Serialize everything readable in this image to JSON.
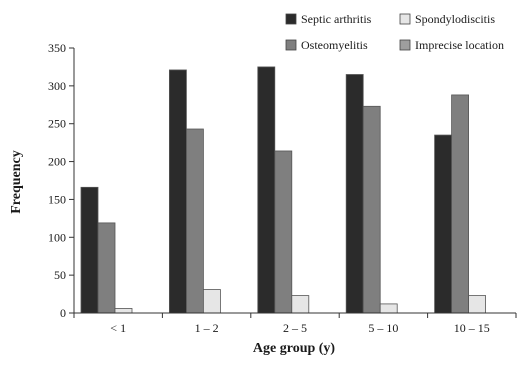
{
  "chart_data": {
    "type": "bar",
    "title": "",
    "xlabel": "Age group (y)",
    "ylabel": "Frequency",
    "ylim": [
      0,
      350
    ],
    "yticks": [
      0,
      50,
      100,
      150,
      200,
      250,
      300,
      350
    ],
    "categories": [
      "< 1",
      "1 – 2",
      "2 – 5",
      "5 – 10",
      "10 – 15"
    ],
    "series": [
      {
        "name": "Septic arthritis",
        "color": "#2b2b2b",
        "values": [
          166,
          321,
          325,
          315,
          235
        ]
      },
      {
        "name": "Osteomyelitis",
        "color": "#7f7f7f",
        "values": [
          119,
          243,
          214,
          273,
          288
        ]
      },
      {
        "name": "Spondylodiscitis",
        "color": "#e6e6e6",
        "values": [
          6,
          31,
          23,
          12,
          23
        ]
      },
      {
        "name": "Imprecise location",
        "color": "#9e9e9e",
        "values": [
          0,
          0,
          0,
          0,
          0
        ]
      }
    ],
    "grid": false,
    "legend_position": "top-right"
  }
}
